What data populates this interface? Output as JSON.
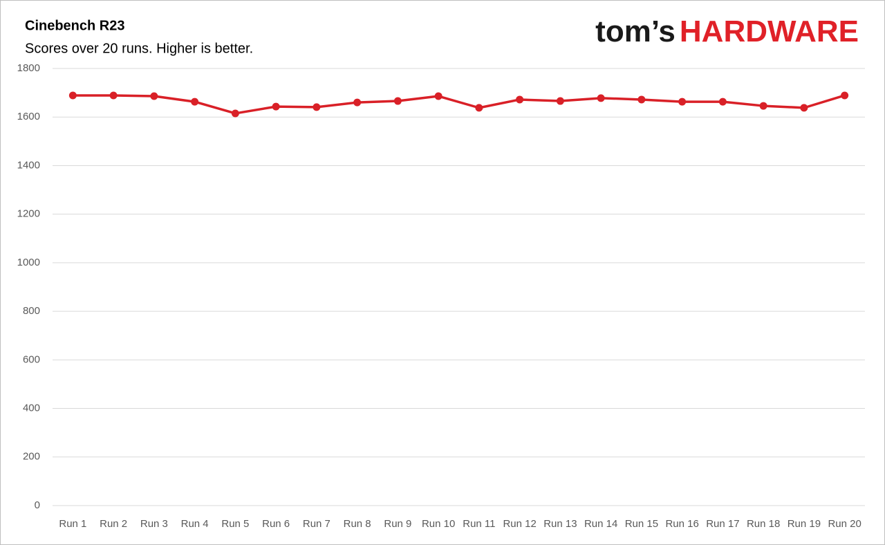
{
  "chart_data": {
    "type": "line",
    "title": "Cinebench R23",
    "subtitle": "Scores over 20 runs. Higher is better.",
    "categories": [
      "Run 1",
      "Run 2",
      "Run 3",
      "Run 4",
      "Run 5",
      "Run 6",
      "Run 7",
      "Run 8",
      "Run 9",
      "Run 10",
      "Run 11",
      "Run 12",
      "Run 13",
      "Run 14",
      "Run 15",
      "Run 16",
      "Run 17",
      "Run 18",
      "Run 19",
      "Run 20"
    ],
    "values": [
      1689,
      1689,
      1686,
      1663,
      1615,
      1643,
      1641,
      1660,
      1666,
      1686,
      1638,
      1672,
      1666,
      1678,
      1672,
      1663,
      1663,
      1646,
      1638,
      1689
    ],
    "color": "#d92027",
    "ylim": [
      0,
      1800
    ],
    "yticks": [
      0,
      200,
      400,
      600,
      800,
      1000,
      1200,
      1400,
      1600,
      1800
    ],
    "grid": true
  },
  "logo": {
    "brand": "tom’s",
    "section": "HARDWARE"
  }
}
